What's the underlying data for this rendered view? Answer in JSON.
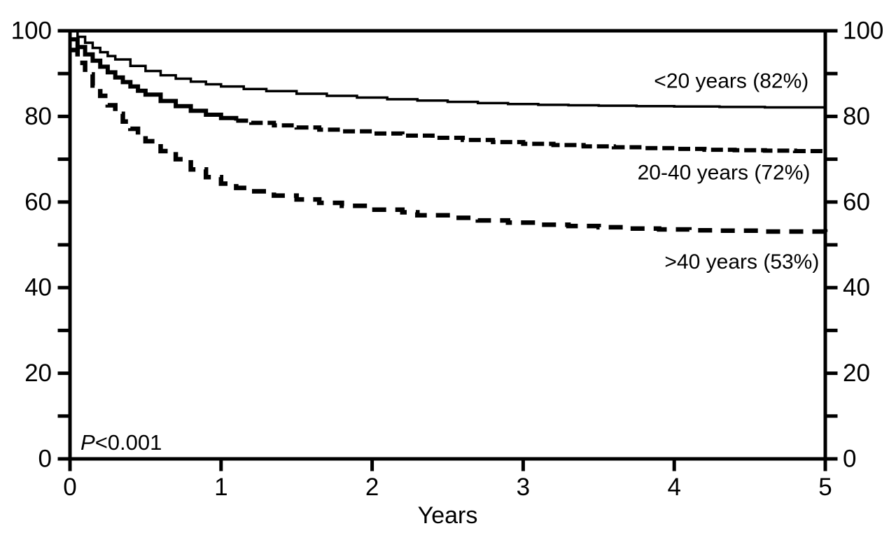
{
  "figure": {
    "background_color": "#ffffff",
    "line_color": "#000000"
  },
  "chart_data": {
    "type": "line",
    "subtype": "kaplan-meier-survival",
    "title": "",
    "xlabel": "Years",
    "ylabel": "",
    "grid": false,
    "legend_position": "inline-right",
    "annotation": {
      "italic_part": "P",
      "value_part": "<0.001"
    },
    "axes": {
      "x": {
        "min": 0,
        "max": 5,
        "ticks": [
          0,
          1,
          2,
          3,
          4,
          5
        ],
        "tick_labels": [
          "0",
          "1",
          "2",
          "3",
          "4",
          "5"
        ],
        "label": "Years"
      },
      "y": {
        "min": 0,
        "max": 100,
        "major_ticks": [
          0,
          20,
          40,
          60,
          80,
          100
        ],
        "major_tick_labels": [
          "0",
          "20",
          "40",
          "60",
          "80",
          "100"
        ],
        "minor_ticks": [
          10,
          30,
          50,
          70,
          90
        ],
        "sides": [
          "left",
          "right"
        ]
      }
    },
    "series": [
      {
        "label": "<20 years (82%)",
        "final_percent": 82,
        "line": {
          "width": 3.5,
          "dash": "none"
        },
        "label_anchor": [
          4.89,
          88.2
        ],
        "points": [
          [
            0,
            100
          ],
          [
            0.05,
            98.6
          ],
          [
            0.1,
            97.2
          ],
          [
            0.15,
            96.0
          ],
          [
            0.2,
            95.0
          ],
          [
            0.25,
            94.1
          ],
          [
            0.3,
            93.3
          ],
          [
            0.4,
            91.8
          ],
          [
            0.5,
            90.6
          ],
          [
            0.6,
            89.6
          ],
          [
            0.7,
            88.8
          ],
          [
            0.8,
            88.1
          ],
          [
            0.9,
            87.5
          ],
          [
            1.0,
            87.0
          ],
          [
            1.15,
            86.4
          ],
          [
            1.3,
            85.9
          ],
          [
            1.5,
            85.3
          ],
          [
            1.7,
            84.8
          ],
          [
            1.9,
            84.4
          ],
          [
            2.1,
            84.0
          ],
          [
            2.3,
            83.7
          ],
          [
            2.5,
            83.4
          ],
          [
            2.7,
            83.1
          ],
          [
            2.9,
            82.9
          ],
          [
            3.1,
            82.7
          ],
          [
            3.3,
            82.6
          ],
          [
            3.5,
            82.5
          ],
          [
            3.75,
            82.4
          ],
          [
            4.0,
            82.3
          ],
          [
            4.3,
            82.2
          ],
          [
            4.6,
            82.1
          ],
          [
            5.0,
            82.0
          ]
        ]
      },
      {
        "label": "20-40 years (72%)",
        "final_percent": 72,
        "line": {
          "width": 6,
          "dash": "17 7",
          "solid_until_year": 1.1
        },
        "label_anchor": [
          4.9,
          66.8
        ],
        "points": [
          [
            0,
            98.0
          ],
          [
            0.05,
            96.2
          ],
          [
            0.1,
            94.5
          ],
          [
            0.15,
            93.0
          ],
          [
            0.2,
            91.6
          ],
          [
            0.25,
            90.3
          ],
          [
            0.3,
            89.1
          ],
          [
            0.35,
            88.0
          ],
          [
            0.4,
            87.0
          ],
          [
            0.45,
            86.0
          ],
          [
            0.5,
            85.1
          ],
          [
            0.6,
            83.6
          ],
          [
            0.7,
            82.4
          ],
          [
            0.8,
            81.3
          ],
          [
            0.9,
            80.4
          ],
          [
            1.0,
            79.6
          ],
          [
            1.1,
            79.0
          ],
          [
            1.2,
            78.5
          ],
          [
            1.35,
            77.9
          ],
          [
            1.5,
            77.4
          ],
          [
            1.65,
            76.9
          ],
          [
            1.8,
            76.5
          ],
          [
            2.0,
            76.0
          ],
          [
            2.2,
            75.5
          ],
          [
            2.4,
            75.0
          ],
          [
            2.6,
            74.5
          ],
          [
            2.8,
            74.0
          ],
          [
            3.0,
            73.6
          ],
          [
            3.2,
            73.3
          ],
          [
            3.4,
            73.0
          ],
          [
            3.6,
            72.8
          ],
          [
            3.8,
            72.6
          ],
          [
            4.0,
            72.4
          ],
          [
            4.2,
            72.2
          ],
          [
            4.4,
            72.1
          ],
          [
            4.6,
            72.0
          ],
          [
            4.8,
            71.9
          ],
          [
            5.0,
            71.8
          ]
        ]
      },
      {
        "label": ">40 years (53%)",
        "final_percent": 53,
        "line": {
          "width": 6.5,
          "dash": "20 13"
        },
        "label_anchor": [
          4.96,
          46.0
        ],
        "points": [
          [
            0,
            95.5
          ],
          [
            0.05,
            92.5
          ],
          [
            0.1,
            89.8
          ],
          [
            0.15,
            87.2
          ],
          [
            0.2,
            84.8
          ],
          [
            0.25,
            82.6
          ],
          [
            0.3,
            80.6
          ],
          [
            0.35,
            78.8
          ],
          [
            0.4,
            77.1
          ],
          [
            0.45,
            75.6
          ],
          [
            0.5,
            74.2
          ],
          [
            0.6,
            71.9
          ],
          [
            0.7,
            70.0
          ],
          [
            0.8,
            67.6
          ],
          [
            0.9,
            65.8
          ],
          [
            1.0,
            64.3
          ],
          [
            1.1,
            63.3
          ],
          [
            1.2,
            62.5
          ],
          [
            1.35,
            61.5
          ],
          [
            1.5,
            60.6
          ],
          [
            1.65,
            59.8
          ],
          [
            1.8,
            59.1
          ],
          [
            2.0,
            58.2
          ],
          [
            2.2,
            57.6
          ],
          [
            2.3,
            56.9
          ],
          [
            2.5,
            56.3
          ],
          [
            2.7,
            55.7
          ],
          [
            2.9,
            55.2
          ],
          [
            3.1,
            54.7
          ],
          [
            3.3,
            54.4
          ],
          [
            3.5,
            54.1
          ],
          [
            3.7,
            53.8
          ],
          [
            3.9,
            53.6
          ],
          [
            4.1,
            53.4
          ],
          [
            4.3,
            53.3
          ],
          [
            4.6,
            53.1
          ],
          [
            5.0,
            53.0
          ]
        ]
      }
    ]
  }
}
